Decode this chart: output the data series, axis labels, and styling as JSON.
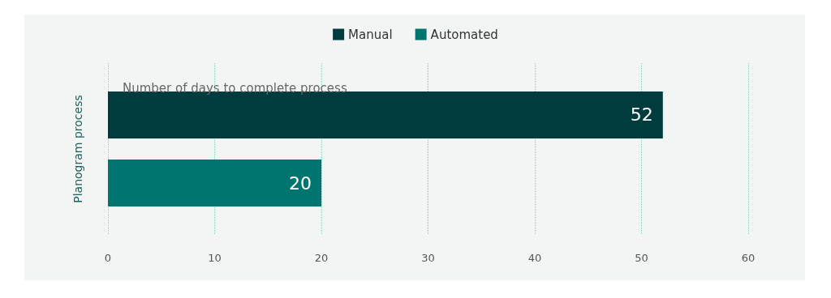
{
  "chart_data": {
    "type": "bar",
    "orientation": "horizontal",
    "subtitle": "Number of days to complete process",
    "categories": [
      "Planogram process"
    ],
    "series": [
      {
        "name": "Manual",
        "color": "#003b3d",
        "values": [
          52
        ]
      },
      {
        "name": "Automated",
        "color": "#00756f",
        "values": [
          20
        ]
      }
    ],
    "xlim": [
      0,
      60
    ],
    "xticks": [
      0,
      10,
      20,
      30,
      40,
      50,
      60
    ],
    "grid": "x",
    "legend": "top",
    "data_labels": true
  }
}
